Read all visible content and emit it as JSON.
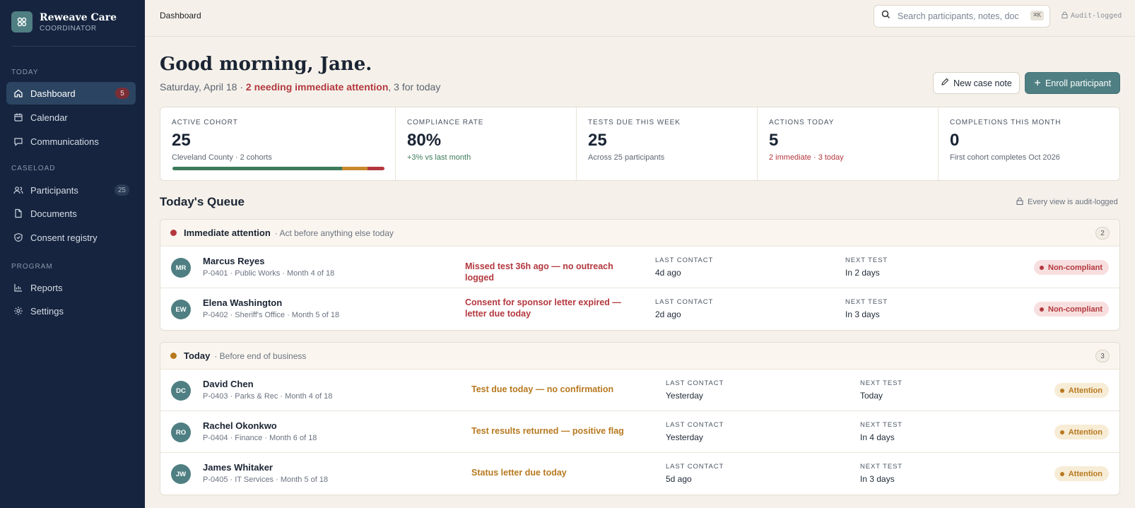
{
  "brand": {
    "name": "Reweave Care",
    "sub": "COORDINATOR"
  },
  "sidebar": {
    "sections": [
      {
        "label": "TODAY"
      },
      {
        "label": "CASELOAD"
      },
      {
        "label": "PROGRAM"
      }
    ],
    "items": [
      {
        "label": "Dashboard",
        "icon": "home-icon",
        "count": "5",
        "active": true
      },
      {
        "label": "Calendar",
        "icon": "calendar-icon"
      },
      {
        "label": "Communications",
        "icon": "message-icon"
      },
      {
        "label": "Participants",
        "icon": "users-icon",
        "count": "25"
      },
      {
        "label": "Documents",
        "icon": "document-icon"
      },
      {
        "label": "Consent registry",
        "icon": "shield-check-icon"
      },
      {
        "label": "Reports",
        "icon": "chart-icon"
      },
      {
        "label": "Settings",
        "icon": "gear-icon"
      }
    ]
  },
  "topbar": {
    "breadcrumb": "Dashboard",
    "search_placeholder": "Search participants, notes, doc",
    "kbd": "⌘K",
    "audit": "Audit-logged"
  },
  "header": {
    "greeting": "Good morning, Jane.",
    "date": "Saturday, April 18 · ",
    "urgent": "2 needing immediate attention",
    "rest": ", 3 for today",
    "new_note": "New case note",
    "enroll": "Enroll participant"
  },
  "stats": [
    {
      "label": "ACTIVE COHORT",
      "value": "25",
      "note": "Cleveland County · 2 cohorts",
      "progress": {
        "compliant": 0.8,
        "attention": 0.12,
        "noncompliant": 0.08
      }
    },
    {
      "label": "COMPLIANCE RATE",
      "value": "80%",
      "note": "+3% vs last month"
    },
    {
      "label": "TESTS DUE THIS WEEK",
      "value": "25",
      "note": "Across 25 participants"
    },
    {
      "label": "ACTIONS TODAY",
      "value": "5",
      "note": "2 immediate · 3 today"
    },
    {
      "label": "COMPLETIONS THIS MONTH",
      "value": "0",
      "note": "First cohort completes Oct 2026"
    }
  ],
  "queue": {
    "title": "Today's Queue",
    "audit_note": "Every view is audit-logged",
    "col_last": "LAST CONTACT",
    "col_next": "NEXT TEST",
    "groups": [
      {
        "title": "Immediate attention",
        "subtitle": "· Act before anything else today",
        "count": "2",
        "color": "#b3383e",
        "rows": [
          {
            "initials": "MR",
            "name": "Marcus Reyes",
            "meta": "P-0401 · Public Works · Month 4 of 18",
            "issue": "Missed test 36h ago — no outreach logged",
            "last": "4d ago",
            "next": "In 2 days",
            "status": "Non-compliant"
          },
          {
            "initials": "EW",
            "name": "Elena Washington",
            "meta": "P-0402 · Sheriff's Office · Month 5 of 18",
            "issue": "Consent for sponsor letter expired — letter due today",
            "last": "2d ago",
            "next": "In 3 days",
            "status": "Non-compliant"
          }
        ]
      },
      {
        "title": "Today",
        "subtitle": "· Before end of business",
        "count": "3",
        "color": "#b7791f",
        "rows": [
          {
            "initials": "DC",
            "name": "David Chen",
            "meta": "P-0403 · Parks & Rec · Month 4 of 18",
            "issue": "Test due today — no confirmation",
            "last": "Yesterday",
            "next": "Today",
            "status": "Attention"
          },
          {
            "initials": "RO",
            "name": "Rachel Okonkwo",
            "meta": "P-0404 · Finance · Month 6 of 18",
            "issue": "Test results returned — positive flag",
            "last": "Yesterday",
            "next": "In 4 days",
            "status": "Attention"
          },
          {
            "initials": "JW",
            "name": "James Whitaker",
            "meta": "P-0405 · IT Services · Month 5 of 18",
            "issue": "Status letter due today",
            "last": "5d ago",
            "next": "In 3 days",
            "status": "Attention"
          }
        ]
      }
    ]
  },
  "colors": {
    "sidebar": "#16243f",
    "accent": "#4f7f82",
    "danger": "#b3383e",
    "warning": "#b7791f",
    "success": "#3d7a5a"
  }
}
